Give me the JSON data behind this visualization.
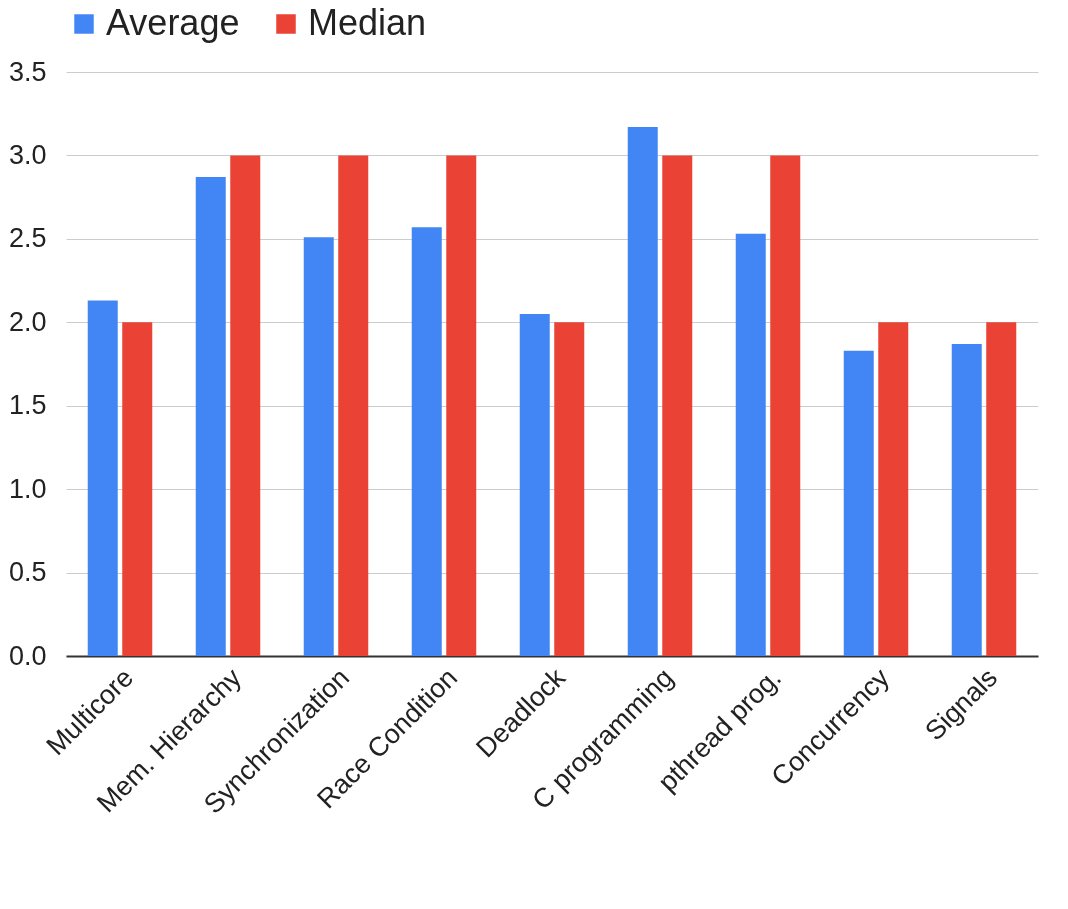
{
  "chart_data": {
    "type": "bar",
    "categories": [
      "Multicore",
      "Mem. Hierarchy",
      "Synchronization",
      "Race Condition",
      "Deadlock",
      "C programming",
      "pthread prog.",
      "Concurrency",
      "Signals"
    ],
    "series": [
      {
        "name": "Average",
        "color": "#4285f4",
        "values": [
          2.13,
          2.87,
          2.51,
          2.57,
          2.05,
          3.17,
          2.53,
          1.83,
          1.87
        ]
      },
      {
        "name": "Median",
        "color": "#ea4335",
        "values": [
          2,
          3,
          3,
          3,
          2,
          3,
          3,
          2,
          2
        ]
      }
    ],
    "ylim": [
      0,
      3.5
    ],
    "yticks": [
      {
        "value": 0,
        "label": "0.0"
      },
      {
        "value": 0.5,
        "label": "0.5"
      },
      {
        "value": 1,
        "label": "1.0"
      },
      {
        "value": 1.5,
        "label": "1.5"
      },
      {
        "value": 2,
        "label": "2.0"
      },
      {
        "value": 2.5,
        "label": "2.5"
      },
      {
        "value": 3,
        "label": "3.0"
      },
      {
        "value": 3.5,
        "label": "3.5"
      }
    ],
    "grid": "y",
    "legend": "top"
  }
}
